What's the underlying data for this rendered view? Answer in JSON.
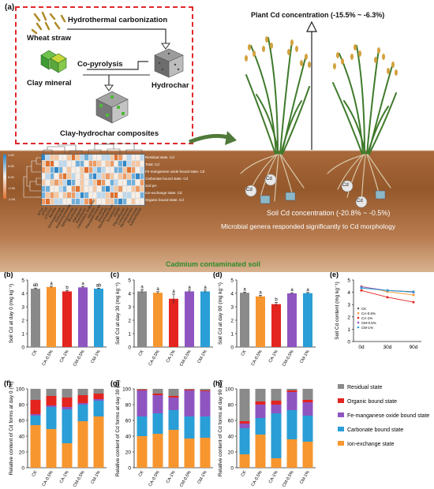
{
  "panel_a": {
    "label": "(a)",
    "wheat_straw": "Wheat straw",
    "hydrothermal": "Hydrothermal carbonization",
    "copyrolysis": "Co-pyrolysis",
    "clay_mineral": "Clay mineral",
    "hydrochar": "Hydrochar",
    "composites": "Clay-hydrochar composites",
    "plant_cd": "Plant Cd concentration (-15.5% ~ -6.3%)",
    "soil_cd": "Soil Cd concentration (-20.8% ~ -0.5%)",
    "microbial": "Microbial genera responded significantly to Cd morphology",
    "contaminated": "Cadmium contaminated soil",
    "cd": "Cd",
    "heatmap_rows": [
      "Residual state. Cd",
      "Total. Cd",
      "Fe-manganese oxide bound state. Cd",
      "Carbonate bound state. Cd",
      "Soil pH",
      "Ion-exchange state. Cd",
      "Organic bound state. Cd"
    ],
    "scale_ticks": [
      "1.00",
      "0.50",
      "0.00",
      "-0.50",
      "-1.00"
    ],
    "genera": [
      "OTU1",
      "OTU2",
      "UTCFX1",
      "Bacillus",
      "Gemmatimonas",
      "Solibacillus",
      "Anaeromyxobacter",
      "Sphingomonas",
      "Bryobacter",
      "Haliangium",
      "Ramlibacter",
      "Candidatus_Solibacter",
      "Massilia",
      "Pseudarthrobacter",
      "Nitrospira",
      "Reyranella",
      "Noviherbaspirillum",
      "Sorangium",
      "Gaiella",
      "Flavisolibacter",
      "Conexibacter",
      "Mycobacterium",
      "Arenimonas",
      "Adhaeribacter"
    ]
  },
  "bar_colors": [
    "#8a8a8a",
    "#f7962f",
    "#e3241f",
    "#8e55c0",
    "#2a9ed6"
  ],
  "stack_colors": [
    "#8a8a8a",
    "#e3241f",
    "#8e55c0",
    "#2a9ed6",
    "#f7962f"
  ],
  "treatments": [
    "CK",
    "CA-0.5%",
    "CA-1%",
    "CM-0.5%",
    "CM-1%"
  ],
  "bar_panels": [
    {
      "label": "(b)",
      "ylabel": "Soil Cd at day 0 (mg kg⁻¹)",
      "ymax": 5,
      "ticks": [
        0,
        1,
        2,
        3,
        4,
        5
      ],
      "values": [
        4.35,
        4.48,
        4.15,
        4.45,
        4.35
      ],
      "errors": [
        0.05,
        0.06,
        0.06,
        0.05,
        0.04
      ],
      "letters": [
        "ab",
        "a",
        "b",
        "a",
        "ab"
      ]
    },
    {
      "label": "(c)",
      "ylabel": "Soil Cd at day 30 (mg kg⁻¹)",
      "ymax": 5,
      "ticks": [
        0,
        1,
        2,
        3,
        4,
        5
      ],
      "values": [
        4.15,
        4.05,
        3.6,
        4.15,
        4.15
      ],
      "errors": [
        0.12,
        0.08,
        0.35,
        0.1,
        0.1
      ],
      "letters": [
        "a",
        "a",
        "a",
        "a",
        "a"
      ]
    },
    {
      "label": "(d)",
      "ylabel": "Soil Cd at day 90 (mg kg⁻¹)",
      "ymax": 5,
      "ticks": [
        0,
        1,
        2,
        3,
        4,
        5
      ],
      "values": [
        4.05,
        3.78,
        3.2,
        4.0,
        4.02
      ],
      "errors": [
        0.05,
        0.08,
        0.12,
        0.05,
        0.05
      ],
      "letters": [
        "a",
        "a",
        "b",
        "a",
        "a"
      ]
    }
  ],
  "line_panel": {
    "label": "(e)",
    "ylabel": "Soil Cd content (mg kg⁻¹)",
    "x": [
      "0d",
      "30d",
      "90d"
    ],
    "ymin": 0,
    "ymax": 5,
    "ticks": [
      0,
      1,
      2,
      3,
      4,
      5
    ],
    "series": [
      {
        "name": "CK",
        "values": [
          4.35,
          4.15,
          4.05
        ]
      },
      {
        "name": "CA-0.5%",
        "values": [
          4.48,
          4.05,
          3.78
        ]
      },
      {
        "name": "CA-1%",
        "values": [
          4.15,
          3.6,
          3.2
        ]
      },
      {
        "name": "CM-0.5%",
        "values": [
          4.45,
          4.15,
          4.0
        ]
      },
      {
        "name": "CM-1%",
        "values": [
          4.35,
          4.15,
          4.02
        ]
      }
    ]
  },
  "stack_panels": [
    {
      "label": "(f)",
      "ylabel": "Relative content of Cd forms at day 0 (%)",
      "data": [
        [
          54,
          12,
          2,
          18,
          14
        ],
        [
          49,
          28,
          2,
          12,
          9
        ],
        [
          31,
          43,
          3,
          12,
          11
        ],
        [
          59,
          21,
          2,
          10,
          8
        ],
        [
          65,
          20,
          2,
          7,
          6
        ]
      ]
    },
    {
      "label": "(g)",
      "ylabel": "Relative content of Cd forms at day 30 (%)",
      "data": [
        [
          40,
          25,
          33,
          1,
          1
        ],
        [
          43,
          26,
          23,
          2,
          6
        ],
        [
          48,
          25,
          16,
          2,
          9
        ],
        [
          37,
          28,
          33,
          1,
          1
        ],
        [
          38,
          27,
          32,
          1,
          2
        ]
      ]
    },
    {
      "label": "(h)",
      "ylabel": "Relative content of Cd forms at day 90 (%)",
      "data": [
        [
          17,
          33,
          6,
          3,
          41
        ],
        [
          42,
          21,
          17,
          4,
          16
        ],
        [
          12,
          57,
          11,
          5,
          15
        ],
        [
          36,
          37,
          23,
          2,
          2
        ],
        [
          33,
          33,
          17,
          3,
          14
        ]
      ]
    }
  ],
  "stack_ticks": [
    0,
    20,
    40,
    60,
    80,
    100
  ],
  "legend_forms": [
    "Residual state",
    "Organic bound state",
    "Fe-manganese oxide bound state",
    "Carbonate bound state",
    "Ion-exchange state"
  ]
}
